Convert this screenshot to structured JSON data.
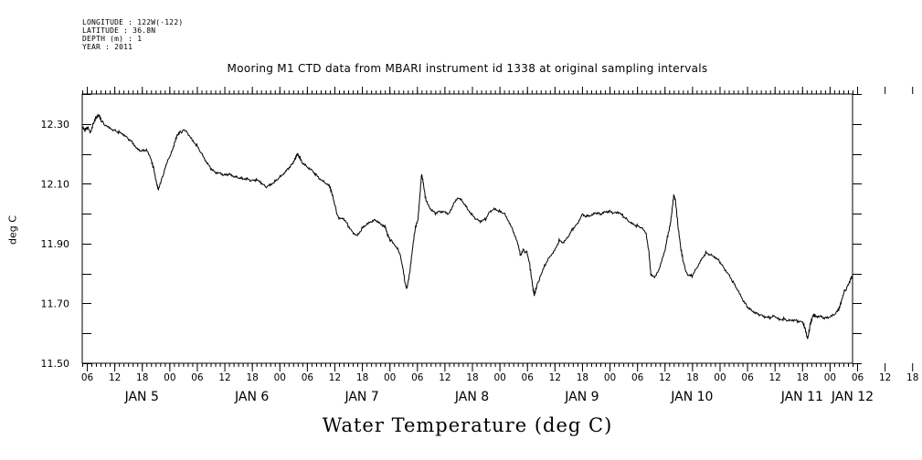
{
  "meta": {
    "longitude": "LONGITUDE : 122W(-122)",
    "latitude": "LATITUDE : 36.8N",
    "depth": "DEPTH (m) : 1",
    "year": "YEAR : 2011"
  },
  "chart_data": {
    "type": "line",
    "title": "Mooring M1 CTD data from MBARI instrument id 1338 at original sampling intervals",
    "xlabel": "Water Temperature (deg C)",
    "ylabel": "deg C",
    "xlim_hours": [
      0,
      168
    ],
    "ylim": [
      11.5,
      12.4
    ],
    "y_ticks": [
      "11.50",
      "11.70",
      "11.90",
      "12.10",
      "12.30"
    ],
    "hour_tick_labels": [
      "06",
      "12",
      "18",
      "00",
      "06",
      "12",
      "18",
      "00",
      "06",
      "12",
      "18",
      "00",
      "06",
      "12",
      "18",
      "00",
      "06",
      "12",
      "18",
      "00",
      "06",
      "12",
      "18",
      "00",
      "06",
      "12",
      "18",
      "00",
      "06",
      "12",
      "18",
      "00"
    ],
    "day_labels": [
      "JAN  5",
      "JAN  6",
      "JAN  7",
      "JAN  8",
      "JAN  9",
      "JAN 10",
      "JAN 11",
      "JAN 12"
    ],
    "series": [
      {
        "values": [
          [
            0,
            12.29
          ],
          [
            0.6,
            12.28
          ],
          [
            1.2,
            12.29
          ],
          [
            1.8,
            12.27
          ],
          [
            2.4,
            12.3
          ],
          [
            3.0,
            12.32
          ],
          [
            3.6,
            12.33
          ],
          [
            4.2,
            12.31
          ],
          [
            5.0,
            12.3
          ],
          [
            6.0,
            12.29
          ],
          [
            7.0,
            12.28
          ],
          [
            8.0,
            12.27
          ],
          [
            9.0,
            12.26
          ],
          [
            10.0,
            12.25
          ],
          [
            11.0,
            12.24
          ],
          [
            12.0,
            12.22
          ],
          [
            13.0,
            12.21
          ],
          [
            14.0,
            12.21
          ],
          [
            15.0,
            12.18
          ],
          [
            15.6,
            12.15
          ],
          [
            16.2,
            12.1
          ],
          [
            16.6,
            12.08
          ],
          [
            17.2,
            12.11
          ],
          [
            18.0,
            12.15
          ],
          [
            19.0,
            12.19
          ],
          [
            20.0,
            12.23
          ],
          [
            20.6,
            12.26
          ],
          [
            21.2,
            12.27
          ],
          [
            22.0,
            12.28
          ],
          [
            23.0,
            12.27
          ],
          [
            24.0,
            12.25
          ],
          [
            25.0,
            12.23
          ],
          [
            26.0,
            12.2
          ],
          [
            27.0,
            12.17
          ],
          [
            28.0,
            12.15
          ],
          [
            29.0,
            12.14
          ],
          [
            30.0,
            12.14
          ],
          [
            31.0,
            12.13
          ],
          [
            32.0,
            12.13
          ],
          [
            33.0,
            12.12
          ],
          [
            34.0,
            12.12
          ],
          [
            35.0,
            12.12
          ],
          [
            36.0,
            12.12
          ],
          [
            37.0,
            12.11
          ],
          [
            38.0,
            12.11
          ],
          [
            39.0,
            12.1
          ],
          [
            40.0,
            12.09
          ],
          [
            41.0,
            12.1
          ],
          [
            42.0,
            12.11
          ],
          [
            43.0,
            12.12
          ],
          [
            44.0,
            12.13
          ],
          [
            45.0,
            12.15
          ],
          [
            46.0,
            12.17
          ],
          [
            46.6,
            12.19
          ],
          [
            47.0,
            12.2
          ],
          [
            47.4,
            12.19
          ],
          [
            48.0,
            12.17
          ],
          [
            49.0,
            12.16
          ],
          [
            50.0,
            12.15
          ],
          [
            51.0,
            12.13
          ],
          [
            52.0,
            12.11
          ],
          [
            53.0,
            12.1
          ],
          [
            54.0,
            12.09
          ],
          [
            54.6,
            12.06
          ],
          [
            55.2,
            12.02
          ],
          [
            56.0,
            11.98
          ],
          [
            57.0,
            11.98
          ],
          [
            58.0,
            11.96
          ],
          [
            59.0,
            11.94
          ],
          [
            60.0,
            11.93
          ],
          [
            61.0,
            11.95
          ],
          [
            62.0,
            11.96
          ],
          [
            63.0,
            11.97
          ],
          [
            64.0,
            11.98
          ],
          [
            65.0,
            11.97
          ],
          [
            66.0,
            11.96
          ],
          [
            66.6,
            11.93
          ],
          [
            67.2,
            11.91
          ],
          [
            68.0,
            11.9
          ],
          [
            69.0,
            11.88
          ],
          [
            69.8,
            11.83
          ],
          [
            70.4,
            11.77
          ],
          [
            70.8,
            11.75
          ],
          [
            71.4,
            11.8
          ],
          [
            72.0,
            11.88
          ],
          [
            72.6,
            11.95
          ],
          [
            73.2,
            11.98
          ],
          [
            73.6,
            12.05
          ],
          [
            74.0,
            12.13
          ],
          [
            74.4,
            12.1
          ],
          [
            75.0,
            12.04
          ],
          [
            76.0,
            12.01
          ],
          [
            77.0,
            12.0
          ],
          [
            78.0,
            12.01
          ],
          [
            79.0,
            12.01
          ],
          [
            80.0,
            12.0
          ],
          [
            81.0,
            12.03
          ],
          [
            82.0,
            12.05
          ],
          [
            83.0,
            12.04
          ],
          [
            84.0,
            12.02
          ],
          [
            85.0,
            12.0
          ],
          [
            86.0,
            11.98
          ],
          [
            87.0,
            11.97
          ],
          [
            88.0,
            11.98
          ],
          [
            89.0,
            12.01
          ],
          [
            90.0,
            12.02
          ],
          [
            91.0,
            12.01
          ],
          [
            92.0,
            12.0
          ],
          [
            93.0,
            11.97
          ],
          [
            94.0,
            11.94
          ],
          [
            95.0,
            11.9
          ],
          [
            95.6,
            11.86
          ],
          [
            96.2,
            11.88
          ],
          [
            97.0,
            11.87
          ],
          [
            97.6,
            11.83
          ],
          [
            98.2,
            11.76
          ],
          [
            98.6,
            11.73
          ],
          [
            99.2,
            11.76
          ],
          [
            100.0,
            11.79
          ],
          [
            101.0,
            11.83
          ],
          [
            102.0,
            11.86
          ],
          [
            103.0,
            11.88
          ],
          [
            104.0,
            11.91
          ],
          [
            105.0,
            11.9
          ],
          [
            106.0,
            11.92
          ],
          [
            107.0,
            11.95
          ],
          [
            108.0,
            11.97
          ],
          [
            109.0,
            12.0
          ],
          [
            110.0,
            11.99
          ],
          [
            111.0,
            11.99
          ],
          [
            112.0,
            12.0
          ],
          [
            113.0,
            12.0
          ],
          [
            114.0,
            12.01
          ],
          [
            115.0,
            12.01
          ],
          [
            116.0,
            12.0
          ],
          [
            117.0,
            12.0
          ],
          [
            118.0,
            11.99
          ],
          [
            119.0,
            11.98
          ],
          [
            120.0,
            11.97
          ],
          [
            121.0,
            11.96
          ],
          [
            122.0,
            11.95
          ],
          [
            123.0,
            11.93
          ],
          [
            123.6,
            11.87
          ],
          [
            124.0,
            11.8
          ],
          [
            125.0,
            11.79
          ],
          [
            126.0,
            11.82
          ],
          [
            127.0,
            11.87
          ],
          [
            127.6,
            11.92
          ],
          [
            128.2,
            11.96
          ],
          [
            128.6,
            12.01
          ],
          [
            129.0,
            12.06
          ],
          [
            129.4,
            12.04
          ],
          [
            130.0,
            11.95
          ],
          [
            130.6,
            11.88
          ],
          [
            131.2,
            11.83
          ],
          [
            132.0,
            11.79
          ],
          [
            133.0,
            11.79
          ],
          [
            134.0,
            11.82
          ],
          [
            135.0,
            11.85
          ],
          [
            136.0,
            11.87
          ],
          [
            137.0,
            11.86
          ],
          [
            138.0,
            11.85
          ],
          [
            139.0,
            11.84
          ],
          [
            140.0,
            11.82
          ],
          [
            141.0,
            11.8
          ],
          [
            142.0,
            11.77
          ],
          [
            143.0,
            11.74
          ],
          [
            144.0,
            11.71
          ],
          [
            145.0,
            11.69
          ],
          [
            146.0,
            11.68
          ],
          [
            147.0,
            11.67
          ],
          [
            148.0,
            11.66
          ],
          [
            149.0,
            11.65
          ],
          [
            150.0,
            11.65
          ],
          [
            151.0,
            11.66
          ],
          [
            152.0,
            11.65
          ],
          [
            153.0,
            11.65
          ],
          [
            154.0,
            11.64
          ],
          [
            155.0,
            11.64
          ],
          [
            156.0,
            11.64
          ],
          [
            157.0,
            11.64
          ],
          [
            157.6,
            11.62
          ],
          [
            158.2,
            11.58
          ],
          [
            158.8,
            11.63
          ],
          [
            159.4,
            11.66
          ],
          [
            160.0,
            11.66
          ],
          [
            161.0,
            11.66
          ],
          [
            162.0,
            11.65
          ],
          [
            163.0,
            11.65
          ],
          [
            164.0,
            11.66
          ],
          [
            165.0,
            11.68
          ],
          [
            165.6,
            11.71
          ],
          [
            166.2,
            11.74
          ],
          [
            167.0,
            11.76
          ],
          [
            167.6,
            11.78
          ],
          [
            168.0,
            11.79
          ]
        ]
      }
    ]
  }
}
